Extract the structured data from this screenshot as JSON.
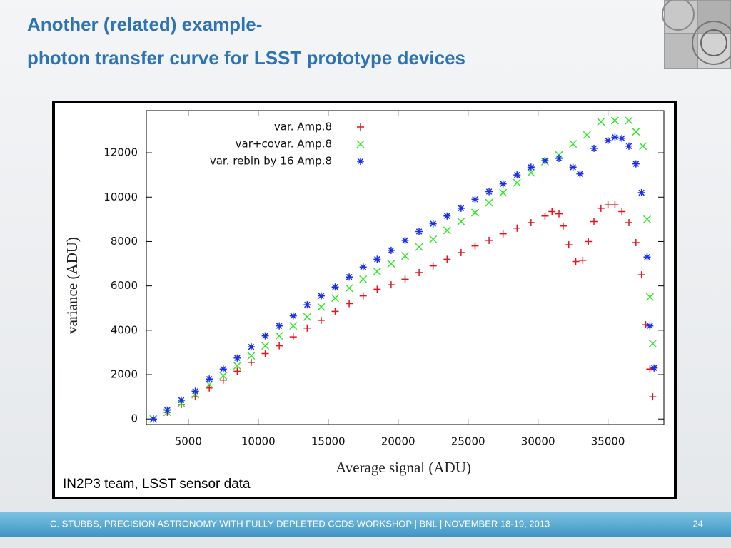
{
  "slide": {
    "title_line1": "Another (related) example-",
    "title_line2": "photon transfer curve for LSST prototype devices",
    "caption": "IN2P3 team, LSST sensor data",
    "footer": "C. STUBBS, PRECISION ASTRONOMY WITH FULLY DEPLETED CCDS WORKSHOP  | BNL | NOVEMBER 18-19, 2013",
    "page_number": "24"
  },
  "chart_data": {
    "type": "scatter",
    "xlabel": "Average signal (ADU)",
    "ylabel": "variance (ADU)",
    "xlim": [
      2000,
      39000
    ],
    "ylim": [
      -250,
      13900
    ],
    "xticks": [
      5000,
      10000,
      15000,
      20000,
      25000,
      30000,
      35000
    ],
    "yticks": [
      0,
      2000,
      4000,
      6000,
      8000,
      10000,
      12000
    ],
    "legend": "top-right",
    "series": [
      {
        "name": "var. Amp.8",
        "color": "#e8141c",
        "marker": "plus",
        "x": [
          2500,
          3500,
          4500,
          5500,
          6500,
          7500,
          8500,
          9500,
          10500,
          11500,
          12500,
          13500,
          14500,
          15500,
          16500,
          17500,
          18500,
          19500,
          20500,
          21500,
          22500,
          23500,
          24500,
          25500,
          26500,
          27500,
          28500,
          29500,
          30500,
          31000,
          31500,
          31800,
          32200,
          32700,
          33200,
          33600,
          34000,
          34500,
          35000,
          35500,
          36000,
          36500,
          37000,
          37400,
          37700,
          38000,
          38200
        ],
        "values": [
          0,
          300,
          650,
          1000,
          1400,
          1750,
          2150,
          2550,
          2950,
          3300,
          3700,
          4100,
          4450,
          4850,
          5200,
          5550,
          5850,
          6050,
          6300,
          6600,
          6900,
          7200,
          7500,
          7800,
          8050,
          8350,
          8600,
          8850,
          9150,
          9350,
          9250,
          8700,
          7850,
          7100,
          7150,
          8000,
          8900,
          9500,
          9650,
          9650,
          9350,
          8850,
          7950,
          6500,
          4250,
          2250,
          1000
        ]
      },
      {
        "name": "var+covar. Amp.8",
        "color": "#35e82c",
        "marker": "cross",
        "x": [
          2500,
          3500,
          4500,
          5500,
          6500,
          7500,
          8500,
          9500,
          10500,
          11500,
          12500,
          13500,
          14500,
          15500,
          16500,
          17500,
          18500,
          19500,
          20500,
          21500,
          22500,
          23500,
          24500,
          25500,
          26500,
          27500,
          28500,
          29500,
          30500,
          31500,
          32500,
          33500,
          34500,
          35500,
          36500,
          37000,
          37500,
          37800,
          38000,
          38200
        ],
        "values": [
          0,
          300,
          700,
          1100,
          1550,
          1950,
          2400,
          2850,
          3300,
          3750,
          4200,
          4600,
          5050,
          5450,
          5900,
          6300,
          6650,
          7000,
          7350,
          7750,
          8100,
          8500,
          8900,
          9300,
          9750,
          10200,
          10650,
          11100,
          11600,
          11900,
          12400,
          12800,
          13400,
          13450,
          13450,
          12950,
          12300,
          9000,
          5500,
          3400
        ]
      },
      {
        "name": "var. rebin by 16 Amp.8",
        "color": "#1a2de8",
        "marker": "star",
        "x": [
          2500,
          3500,
          4500,
          5500,
          6500,
          7500,
          8500,
          9500,
          10500,
          11500,
          12500,
          13500,
          14500,
          15500,
          16500,
          17500,
          18500,
          19500,
          20500,
          21500,
          22500,
          23500,
          24500,
          25500,
          26500,
          27500,
          28500,
          29500,
          30500,
          31500,
          32500,
          33000,
          34000,
          35000,
          35500,
          36000,
          36500,
          37000,
          37400,
          37800,
          38000,
          38300
        ],
        "values": [
          0,
          400,
          850,
          1250,
          1800,
          2250,
          2750,
          3250,
          3750,
          4200,
          4650,
          5150,
          5550,
          5950,
          6400,
          6850,
          7200,
          7600,
          8050,
          8450,
          8800,
          9150,
          9500,
          9900,
          10250,
          10600,
          11000,
          11350,
          11650,
          11750,
          11350,
          11050,
          12200,
          12550,
          12700,
          12650,
          12300,
          11500,
          10200,
          7300,
          4200,
          2300
        ]
      }
    ]
  }
}
